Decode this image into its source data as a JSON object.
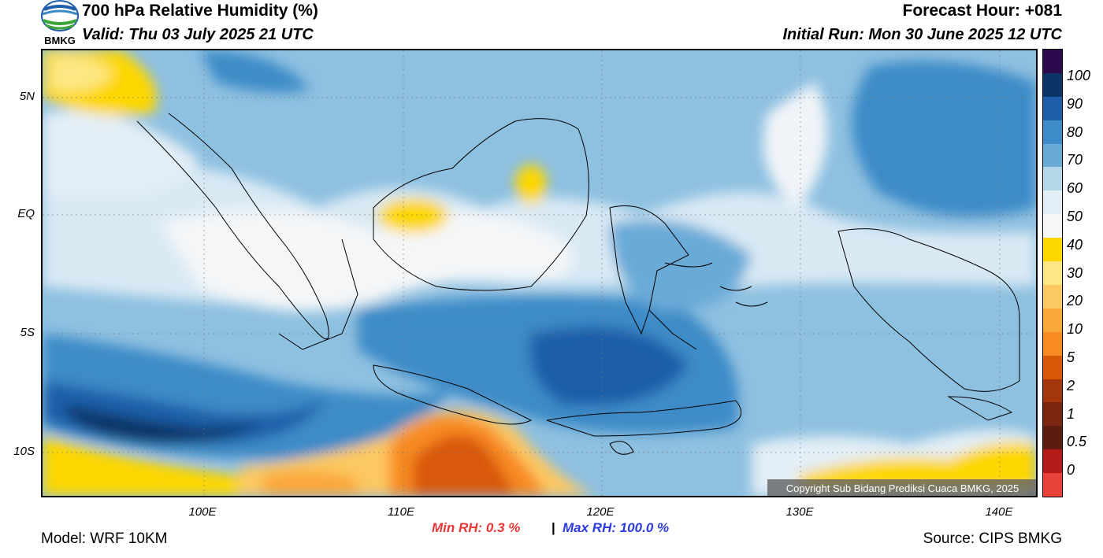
{
  "header": {
    "title": "700 hPa Relative Humidity (%)",
    "valid": "Valid: Thu 03 July 2025 21 UTC",
    "forecast_hour": "Forecast Hour: +081",
    "initial_run": "Initial Run: Mon 30 June 2025 12 UTC",
    "logo_text": "BMKG"
  },
  "axes": {
    "y_ticks": [
      "5N",
      "EQ",
      "5S",
      "10S"
    ],
    "x_ticks": [
      "100E",
      "110E",
      "120E",
      "130E",
      "140E"
    ]
  },
  "colorbar": {
    "labels": [
      "100",
      "90",
      "80",
      "70",
      "60",
      "50",
      "40",
      "30",
      "20",
      "10",
      "5",
      "2",
      "1",
      "0.5",
      "0"
    ],
    "colors": [
      "#2b0a4e",
      "#0c3466",
      "#1f5ea8",
      "#3d8bc7",
      "#6aaad7",
      "#b6d7ea",
      "#e3eef6",
      "#f6f7f8",
      "#fdd700",
      "#fde784",
      "#fcc862",
      "#fba83a",
      "#f78a22",
      "#d95807",
      "#a3370b",
      "#7a2610",
      "#5c1c10",
      "#b41a1a",
      "#e8423a"
    ]
  },
  "stats": {
    "min_label": "Min RH:   0.3 %",
    "separator": "|",
    "max_label": "Max RH: 100.0 %"
  },
  "footer": {
    "model": "Model: WRF 10KM",
    "source": "Source: CIPS BMKG",
    "copyright": "Copyright Sub Bidang Prediksi Cuaca BMKG, 2025"
  }
}
